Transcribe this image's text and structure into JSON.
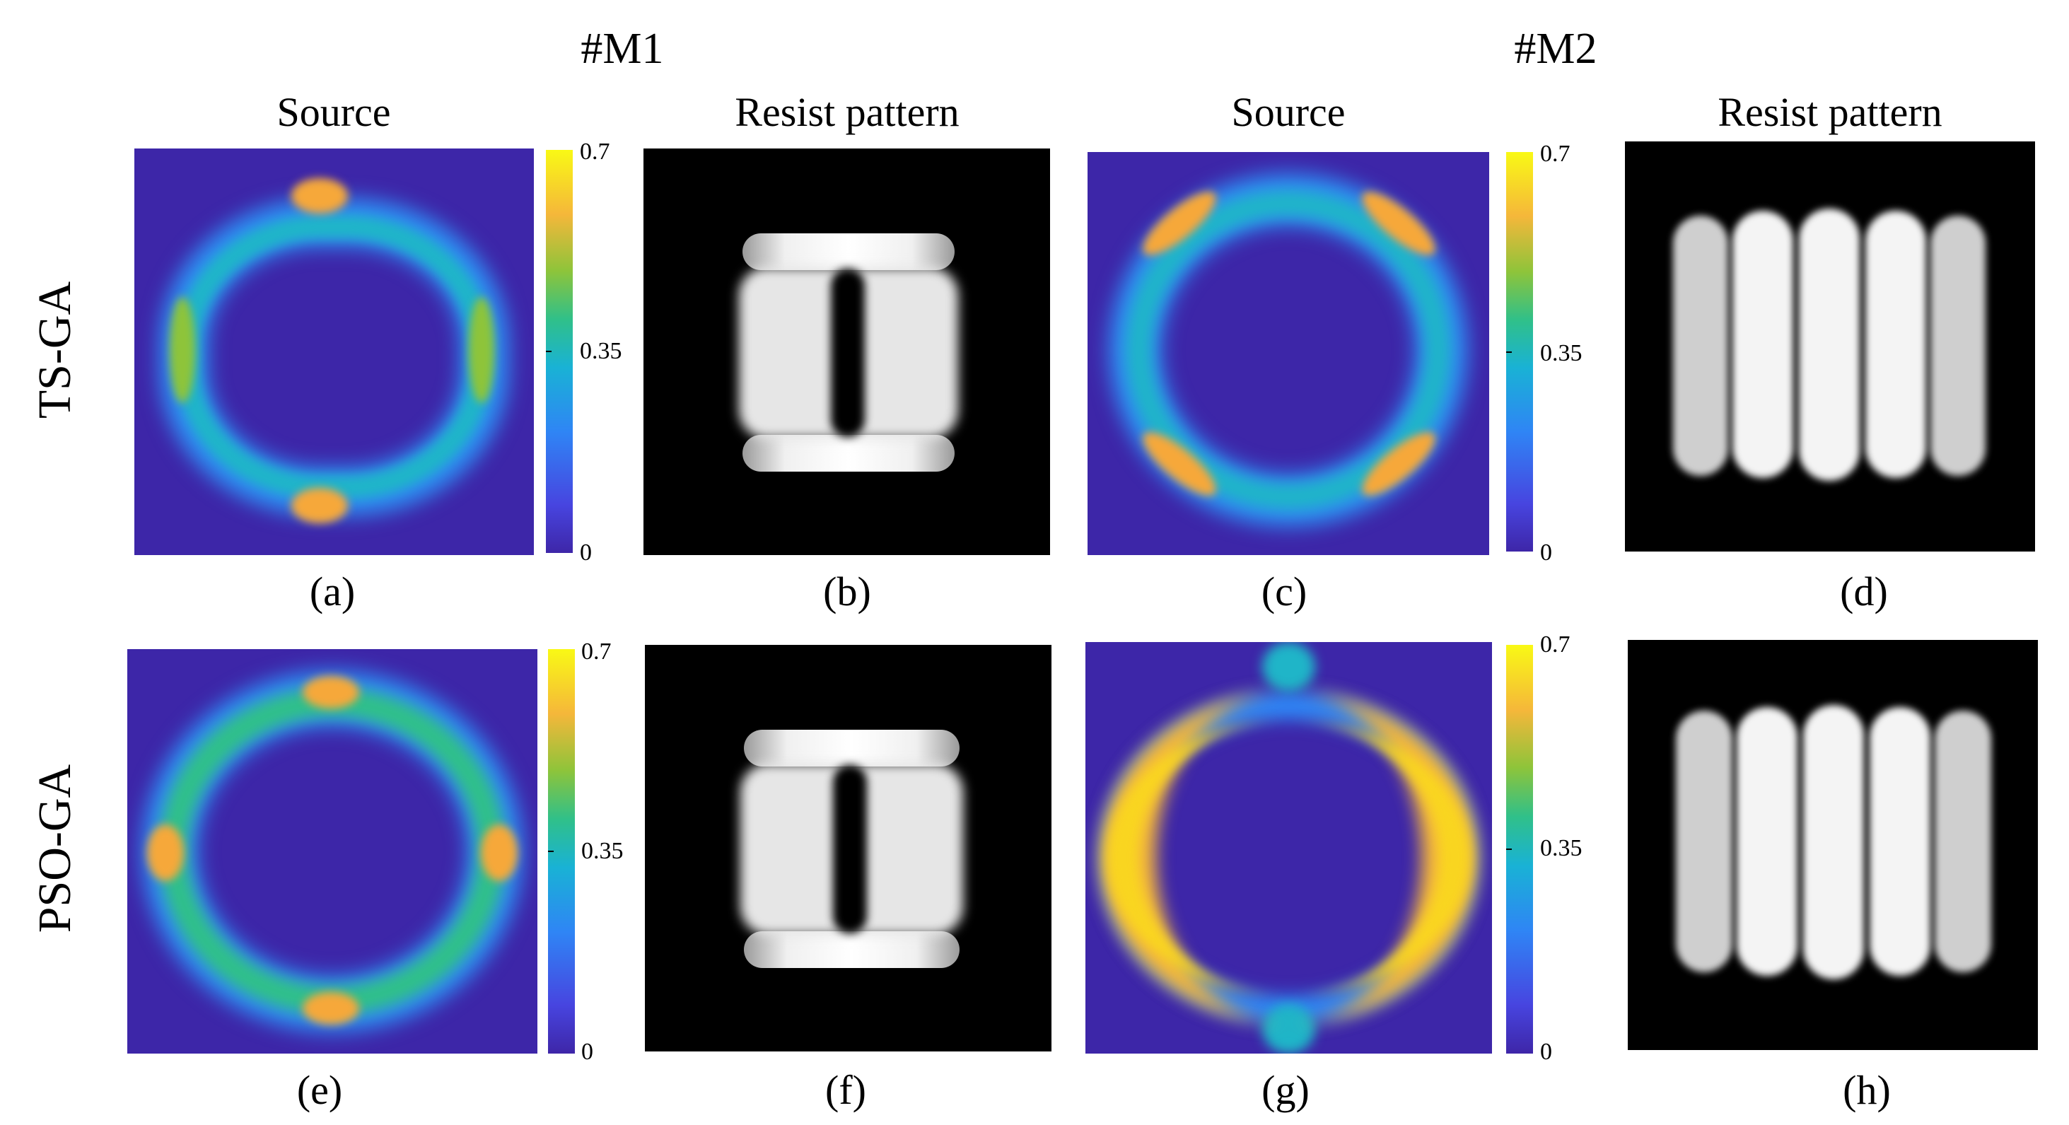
{
  "columns": {
    "m1": "#M1",
    "m2": "#M2"
  },
  "headers": {
    "source": "Source",
    "resist": "Resist pattern"
  },
  "rows": {
    "ts_ga": "TS-GA",
    "pso_ga": "PSO-GA"
  },
  "colorbar": {
    "max": "0.7",
    "mid": "0.35",
    "min": "0",
    "colors": [
      "#3e26a8",
      "#4745e0",
      "#2f85f5",
      "#19b2d5",
      "#30c089",
      "#8ec43a",
      "#f5b73a",
      "#f9f915"
    ]
  },
  "panels": [
    {
      "caption": "(a)"
    },
    {
      "caption": "(b)"
    },
    {
      "caption": "(c)"
    },
    {
      "caption": "(d)"
    },
    {
      "caption": "(e)"
    },
    {
      "caption": "(f)"
    },
    {
      "caption": "(g)"
    },
    {
      "caption": "(h)"
    }
  ]
}
